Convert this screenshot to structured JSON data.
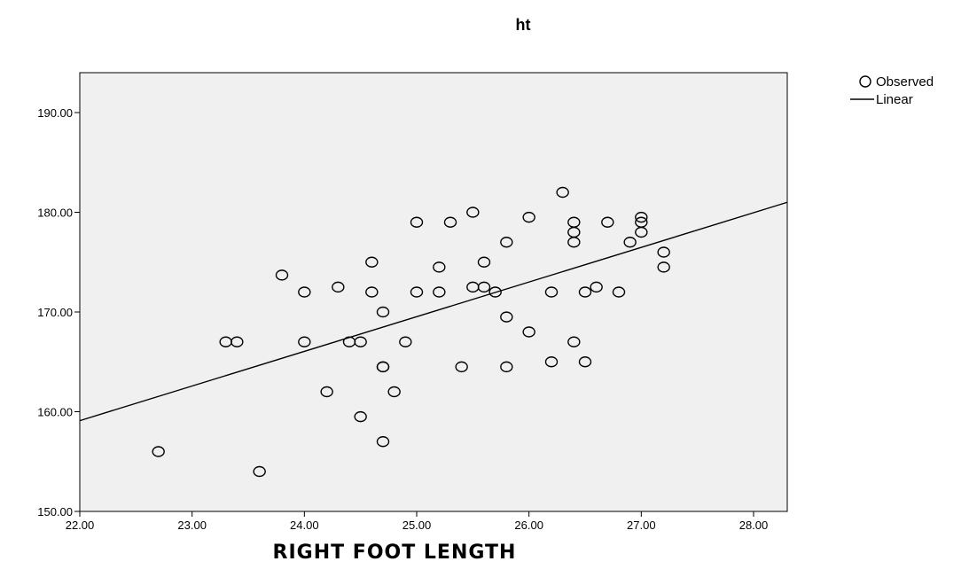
{
  "chart_data": {
    "type": "scatter",
    "title": "ht",
    "xlabel": "RIGHT FOOT LENGTH",
    "ylabel": "",
    "xlim": [
      22.0,
      28.3
    ],
    "ylim": [
      150.0,
      194.0
    ],
    "x_ticks": [
      "22.00",
      "23.00",
      "24.00",
      "25.00",
      "26.00",
      "27.00",
      "28.00"
    ],
    "y_ticks": [
      "150.00",
      "160.00",
      "170.00",
      "180.00",
      "190.00"
    ],
    "grid": false,
    "legend_position": "top-right",
    "legend": {
      "observed": "Observed",
      "linear": "Linear"
    },
    "colors": {
      "plot_background": "#f0f0f0",
      "marker": "#000000",
      "line": "#000000"
    },
    "series": [
      {
        "name": "Observed",
        "kind": "points",
        "points": [
          [
            22.7,
            156.0
          ],
          [
            23.3,
            167.0
          ],
          [
            23.4,
            167.0
          ],
          [
            23.6,
            154.0
          ],
          [
            23.8,
            173.7
          ],
          [
            24.0,
            172.0
          ],
          [
            24.0,
            167.0
          ],
          [
            24.2,
            162.0
          ],
          [
            24.3,
            172.5
          ],
          [
            24.4,
            167.0
          ],
          [
            24.5,
            167.0
          ],
          [
            24.5,
            159.5
          ],
          [
            24.6,
            175.0
          ],
          [
            24.6,
            172.0
          ],
          [
            24.7,
            170.0
          ],
          [
            24.7,
            164.5
          ],
          [
            24.7,
            164.5
          ],
          [
            24.7,
            157.0
          ],
          [
            24.8,
            162.0
          ],
          [
            24.9,
            167.0
          ],
          [
            25.0,
            179.0
          ],
          [
            25.0,
            172.0
          ],
          [
            25.2,
            174.5
          ],
          [
            25.2,
            172.0
          ],
          [
            25.3,
            179.0
          ],
          [
            25.4,
            164.5
          ],
          [
            25.5,
            180.0
          ],
          [
            25.5,
            172.5
          ],
          [
            25.6,
            175.0
          ],
          [
            25.6,
            172.5
          ],
          [
            25.7,
            172.0
          ],
          [
            25.8,
            177.0
          ],
          [
            25.8,
            169.5
          ],
          [
            25.8,
            164.5
          ],
          [
            26.0,
            179.5
          ],
          [
            26.0,
            168.0
          ],
          [
            26.2,
            172.0
          ],
          [
            26.2,
            165.0
          ],
          [
            26.3,
            182.0
          ],
          [
            26.4,
            179.0
          ],
          [
            26.4,
            178.0
          ],
          [
            26.4,
            177.0
          ],
          [
            26.4,
            167.0
          ],
          [
            26.5,
            172.0
          ],
          [
            26.5,
            165.0
          ],
          [
            26.6,
            172.5
          ],
          [
            26.7,
            179.0
          ],
          [
            26.8,
            172.0
          ],
          [
            26.9,
            177.0
          ],
          [
            27.0,
            179.5
          ],
          [
            27.0,
            179.0
          ],
          [
            27.0,
            178.0
          ],
          [
            27.2,
            176.0
          ],
          [
            27.2,
            174.5
          ]
        ]
      },
      {
        "name": "Linear",
        "kind": "line",
        "points": [
          [
            22.0,
            159.1
          ],
          [
            28.3,
            181.0
          ]
        ]
      }
    ]
  }
}
